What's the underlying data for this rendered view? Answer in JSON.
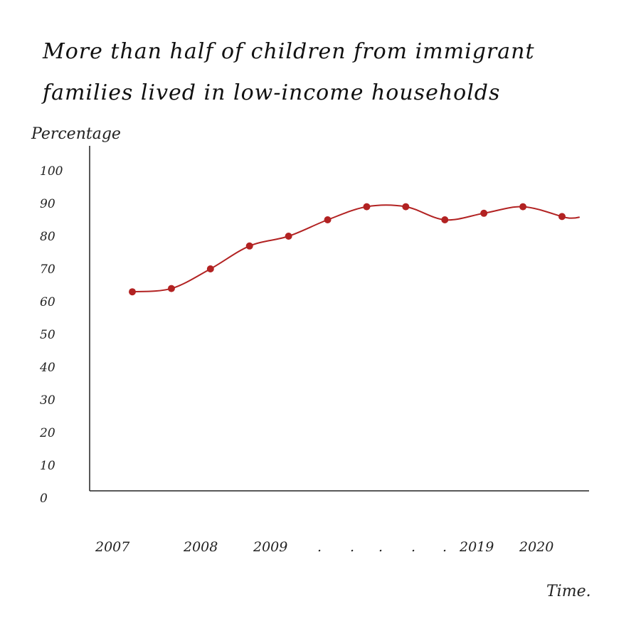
{
  "chart_data": {
    "type": "line",
    "title": "More than half of children from immigrant families lived in low-income households",
    "xlabel": "Time.",
    "ylabel": "Percentage",
    "ylim": [
      0,
      100
    ],
    "y_ticks": [
      "0",
      "10",
      "20",
      "30",
      "40",
      "50",
      "60",
      "70",
      "80",
      "90",
      "100"
    ],
    "x_tick_labels": [
      "2007",
      "2008",
      "2009",
      ".",
      ".",
      ".",
      ".",
      ".",
      "2019",
      "2020"
    ],
    "grid": false,
    "legend": "none",
    "series": [
      {
        "values": [
          63,
          64,
          70,
          77,
          80,
          85,
          89,
          89,
          85,
          87,
          89,
          86
        ],
        "color": "#b22222"
      }
    ]
  }
}
